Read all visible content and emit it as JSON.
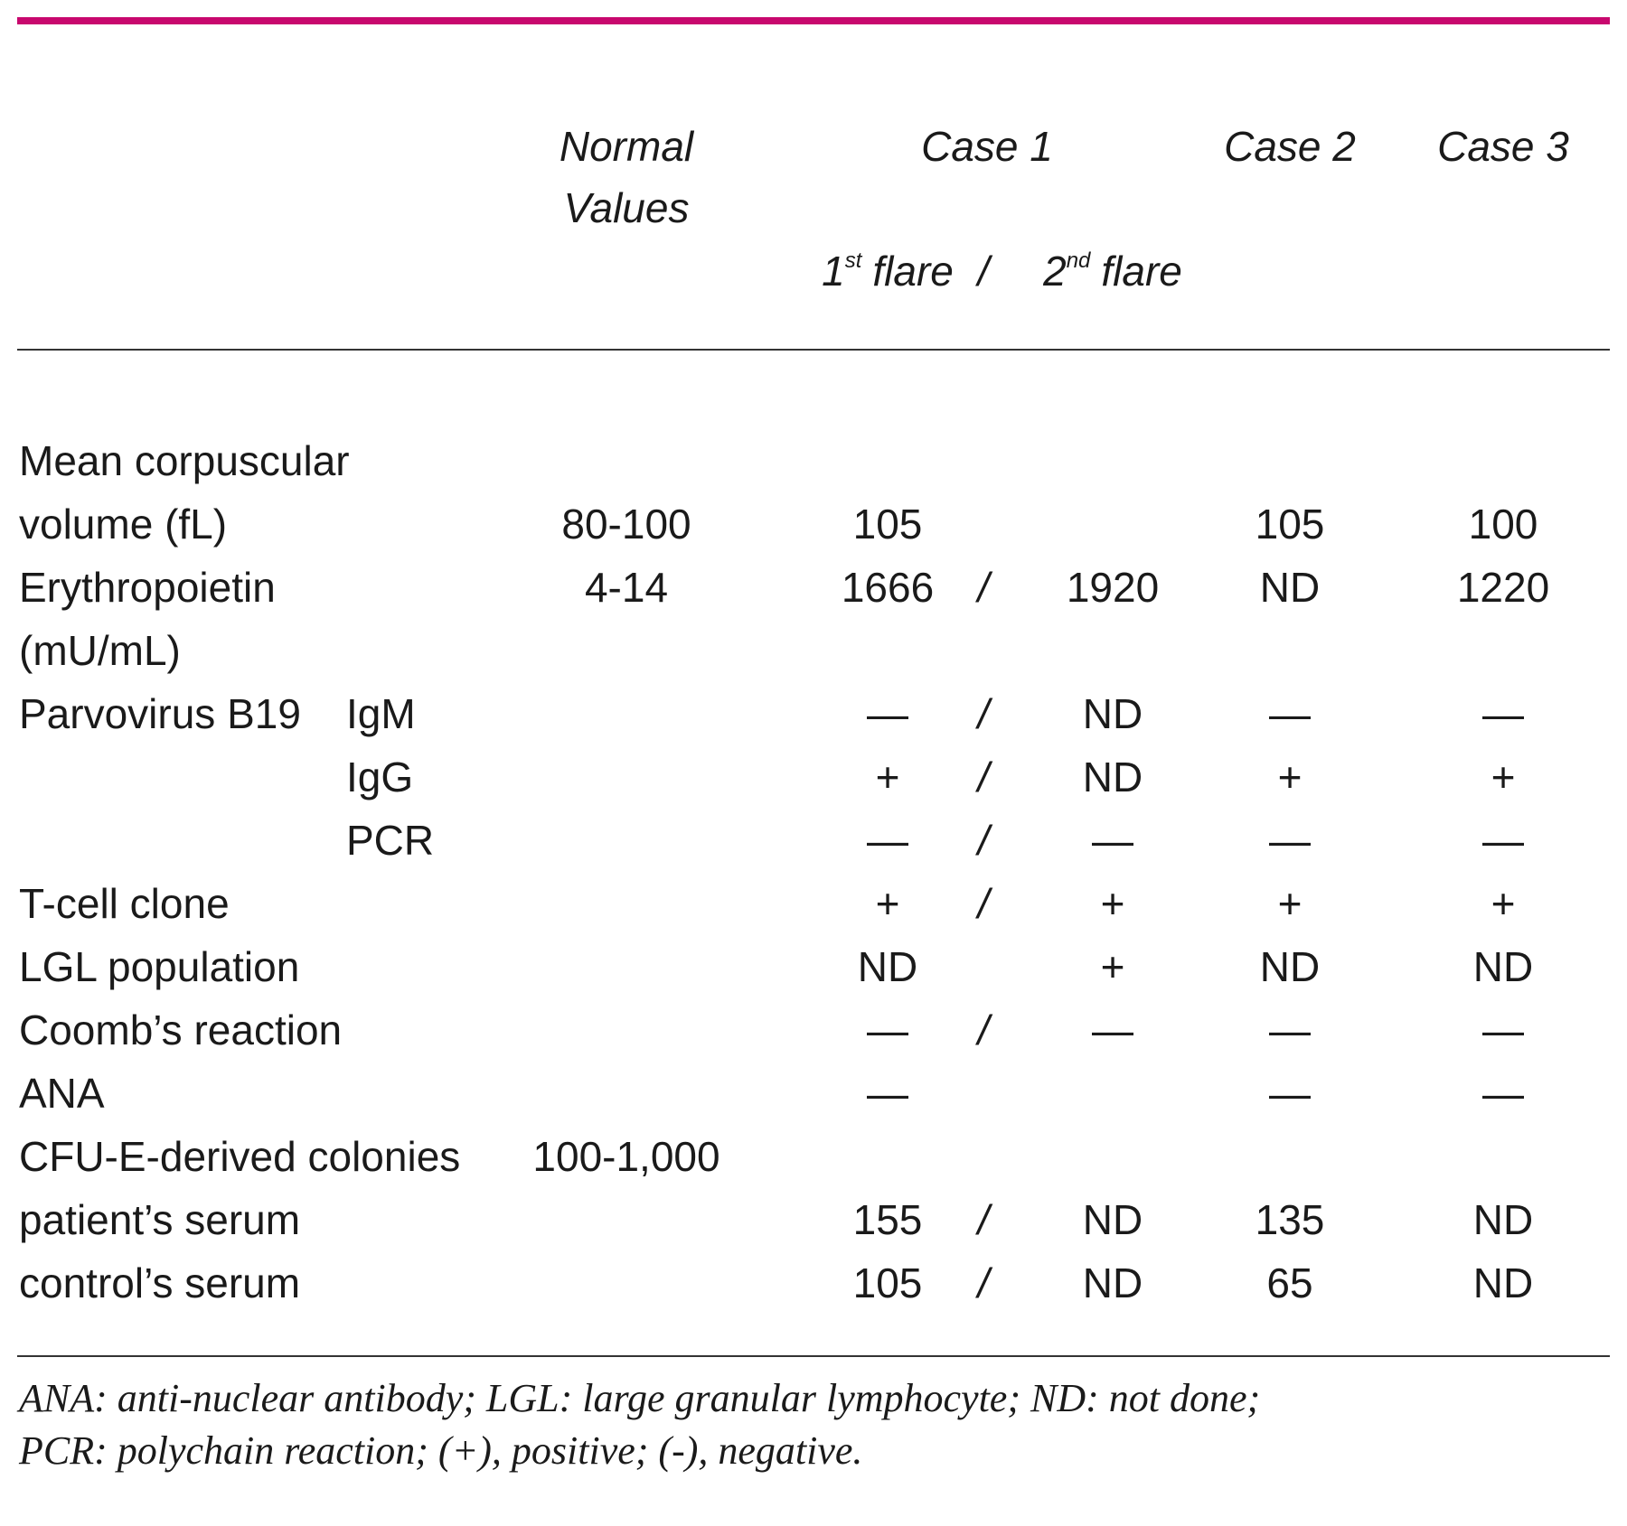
{
  "header": {
    "normal": [
      "Normal",
      "Values"
    ],
    "case1": "Case 1",
    "case2": "Case 2",
    "case3": "Case 3",
    "flare1": {
      "num": "1",
      "sup": "st",
      "text": "flare"
    },
    "separator": "/",
    "flare2": {
      "num": "2",
      "sup": "nd",
      "text": "flare"
    }
  },
  "table": {
    "rows": [
      {
        "label": "Mean corpuscular"
      },
      {
        "label": "volume (fL)",
        "normal": "80-100",
        "c1a": "105",
        "c2": "105",
        "c3": "100"
      },
      {
        "label": "Erythropoietin",
        "normal": "4-14",
        "c1a": "1666",
        "sep": "/",
        "c1b": "1920",
        "c2": "ND",
        "c3": "1220"
      },
      {
        "label": "(mU/mL)"
      },
      {
        "label": "Parvovirus B19",
        "sub": "IgM",
        "c1a": "—",
        "sep": "/",
        "c1b": "ND",
        "c2": "—",
        "c3": "—"
      },
      {
        "sub": "IgG",
        "c1a": "+",
        "sep": "/",
        "c1b": "ND",
        "c2": "+",
        "c3": "+"
      },
      {
        "sub": "PCR",
        "c1a": "—",
        "sep": "/",
        "c1b": "—",
        "c2": "—",
        "c3": "—"
      },
      {
        "label": "T-cell clone",
        "c1a": "+",
        "sep": "/",
        "c1b": "+",
        "c2": "+",
        "c3": "+"
      },
      {
        "label": "LGL population",
        "c1a": "ND",
        "c1b": "+",
        "c2": "ND",
        "c3": "ND"
      },
      {
        "label": "Coomb’s reaction",
        "c1a": "—",
        "sep": "/",
        "c1b": "—",
        "c2": "—",
        "c3": "—"
      },
      {
        "label": "ANA",
        "c1a": "—",
        "c2": "—",
        "c3": "—"
      },
      {
        "label": "CFU-E-derived colonies",
        "normal": "100-1,000"
      },
      {
        "label": "patient’s serum",
        "c1a": "155",
        "sep": "/",
        "c1b": "ND",
        "c2": "135",
        "c3": "ND"
      },
      {
        "label": "control’s serum",
        "c1a": "105",
        "sep": "/",
        "c1b": "ND",
        "c2": "65",
        "c3": "ND"
      }
    ]
  },
  "footnote": [
    "ANA: anti-nuclear antibody; LGL: large granular lymphocyte; ND: not done;",
    "PCR: polychain reaction; (+), positive; (-), negative."
  ]
}
